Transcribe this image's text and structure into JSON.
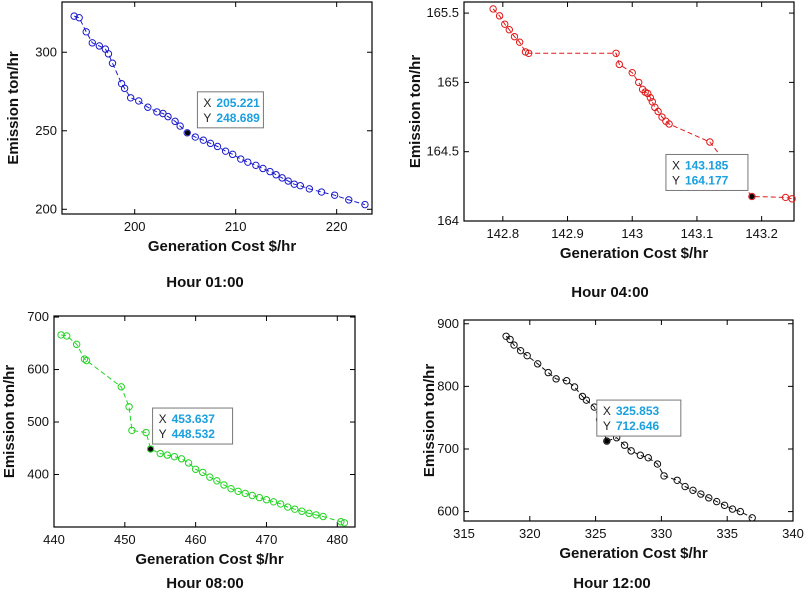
{
  "chart_data": [
    {
      "type": "scatter",
      "caption": "Hour 01:00",
      "xlabel": "Generation Cost $/hr",
      "ylabel": "Emission ton/hr",
      "xlim": [
        192.8,
        223.5
      ],
      "ylim": [
        197,
        332
      ],
      "xticks": [
        200,
        210,
        220
      ],
      "yticks": [
        200,
        250,
        300
      ],
      "xtick_labels": [
        "200",
        "210",
        "220"
      ],
      "ytick_labels": [
        "200",
        "250",
        "300"
      ],
      "color": "#1c1ccc",
      "points": [
        [
          194.0,
          323.0
        ],
        [
          194.5,
          322.0
        ],
        [
          195.2,
          313.0
        ],
        [
          195.8,
          306.0
        ],
        [
          196.5,
          304.0
        ],
        [
          197.1,
          302.0
        ],
        [
          197.4,
          299.0
        ],
        [
          197.8,
          293.0
        ],
        [
          198.7,
          280.0
        ],
        [
          199.0,
          277.0
        ],
        [
          199.6,
          271.0
        ],
        [
          200.4,
          269.0
        ],
        [
          201.3,
          265.0
        ],
        [
          202.2,
          262.0
        ],
        [
          202.8,
          261.0
        ],
        [
          203.3,
          259.0
        ],
        [
          204.0,
          256.0
        ],
        [
          204.5,
          253.0
        ],
        [
          205.2,
          248.7
        ],
        [
          206.0,
          246.0
        ],
        [
          206.8,
          244.0
        ],
        [
          207.5,
          242.0
        ],
        [
          208.2,
          240.0
        ],
        [
          209.0,
          237.0
        ],
        [
          209.7,
          235.0
        ],
        [
          210.5,
          232.0
        ],
        [
          211.2,
          230.0
        ],
        [
          212.0,
          228.0
        ],
        [
          212.7,
          226.0
        ],
        [
          213.4,
          224.0
        ],
        [
          214.0,
          222.0
        ],
        [
          214.6,
          220.0
        ],
        [
          215.2,
          218.0
        ],
        [
          215.8,
          216.0
        ],
        [
          216.4,
          215.0
        ],
        [
          217.3,
          213.0
        ],
        [
          218.5,
          211.0
        ],
        [
          219.8,
          209.0
        ],
        [
          221.2,
          206.0
        ],
        [
          222.8,
          203.0
        ]
      ],
      "cursor": {
        "x": "205.221",
        "y": "248.689",
        "x_val": 205.221,
        "y_val": 248.689
      }
    },
    {
      "type": "scatter",
      "caption": "Hour 04:00",
      "xlabel": "Generation Cost $/hr",
      "ylabel": "Emission ton/hr",
      "xlim": [
        142.74,
        143.25
      ],
      "ylim": [
        164.0,
        165.58
      ],
      "xticks": [
        142.8,
        142.9,
        143.0,
        143.1,
        143.2
      ],
      "yticks": [
        164.0,
        164.5,
        165.0,
        165.5
      ],
      "xtick_labels": [
        "142.8",
        "142.9",
        "143",
        "143.1",
        "143.2"
      ],
      "ytick_labels": [
        "164",
        "164.5",
        "165",
        "165.5"
      ],
      "color": "#e01818",
      "points": [
        [
          142.785,
          165.53
        ],
        [
          142.795,
          165.48
        ],
        [
          142.803,
          165.42
        ],
        [
          142.81,
          165.38
        ],
        [
          142.818,
          165.33
        ],
        [
          142.826,
          165.29
        ],
        [
          142.835,
          165.22
        ],
        [
          142.84,
          165.21
        ],
        [
          142.975,
          165.21
        ],
        [
          142.98,
          165.13
        ],
        [
          143.0,
          165.07
        ],
        [
          143.01,
          165.0
        ],
        [
          143.016,
          164.95
        ],
        [
          143.02,
          164.93
        ],
        [
          143.024,
          164.92
        ],
        [
          143.028,
          164.89
        ],
        [
          143.031,
          164.86
        ],
        [
          143.035,
          164.82
        ],
        [
          143.04,
          164.79
        ],
        [
          143.046,
          164.75
        ],
        [
          143.052,
          164.72
        ],
        [
          143.057,
          164.7
        ],
        [
          143.12,
          164.57
        ],
        [
          143.185,
          164.177
        ],
        [
          143.237,
          164.17
        ],
        [
          143.247,
          164.16
        ]
      ],
      "cursor": {
        "x": "143.185",
        "y": "164.177",
        "x_val": 143.185,
        "y_val": 164.177
      }
    },
    {
      "type": "scatter",
      "caption": "Hour 08:00",
      "xlabel": "Generation Cost $/hr",
      "ylabel": "Emission ton/hr",
      "xlim": [
        440,
        482.5
      ],
      "ylim": [
        300,
        702
      ],
      "xticks": [
        440,
        450,
        460,
        470,
        480
      ],
      "yticks": [
        400,
        500,
        600,
        700
      ],
      "xtick_labels": [
        "440",
        "450",
        "460",
        "470",
        "480"
      ],
      "ytick_labels": [
        "400",
        "500",
        "600",
        "700"
      ],
      "color": "#22d422",
      "points": [
        [
          441.0,
          666.0
        ],
        [
          441.8,
          664.0
        ],
        [
          443.2,
          648.0
        ],
        [
          444.3,
          620.0
        ],
        [
          444.6,
          617.0
        ],
        [
          449.5,
          567.0
        ],
        [
          450.6,
          529.0
        ],
        [
          451.0,
          484.0
        ],
        [
          453.0,
          480.0
        ],
        [
          453.637,
          448.532
        ],
        [
          455.0,
          440.0
        ],
        [
          456.0,
          437.0
        ],
        [
          457.0,
          434.0
        ],
        [
          458.0,
          430.0
        ],
        [
          459.0,
          422.0
        ],
        [
          460.0,
          410.0
        ],
        [
          461.0,
          404.0
        ],
        [
          462.0,
          395.0
        ],
        [
          463.0,
          388.0
        ],
        [
          464.0,
          380.0
        ],
        [
          465.0,
          373.0
        ],
        [
          466.0,
          368.0
        ],
        [
          467.0,
          364.0
        ],
        [
          468.0,
          360.0
        ],
        [
          469.0,
          356.0
        ],
        [
          470.0,
          352.0
        ],
        [
          471.0,
          348.0
        ],
        [
          472.0,
          344.0
        ],
        [
          473.0,
          338.0
        ],
        [
          474.0,
          334.0
        ],
        [
          475.0,
          330.0
        ],
        [
          476.0,
          326.0
        ],
        [
          477.0,
          323.0
        ],
        [
          478.0,
          320.0
        ],
        [
          480.5,
          310.0
        ],
        [
          481.0,
          308.0
        ]
      ],
      "cursor": {
        "x": "453.637",
        "y": "448.532",
        "x_val": 453.637,
        "y_val": 448.532
      }
    },
    {
      "type": "scatter",
      "caption": "Hour 12:00",
      "xlabel": "Generation Cost $/hr",
      "ylabel": "Emission ton/hr",
      "xlim": [
        315,
        340
      ],
      "ylim": [
        585,
        906
      ],
      "xticks": [
        315,
        320,
        325,
        330,
        335,
        340
      ],
      "yticks": [
        600,
        700,
        800,
        900
      ],
      "xtick_labels": [
        "315",
        "320",
        "325",
        "330",
        "335",
        "340"
      ],
      "ytick_labels": [
        "600",
        "700",
        "800",
        "900"
      ],
      "color": "#111111",
      "points": [
        [
          318.2,
          880.0
        ],
        [
          318.5,
          875.0
        ],
        [
          318.8,
          866.0
        ],
        [
          319.3,
          857.0
        ],
        [
          319.8,
          849.0
        ],
        [
          320.6,
          836.0
        ],
        [
          321.4,
          822.0
        ],
        [
          322.0,
          812.0
        ],
        [
          322.8,
          809.0
        ],
        [
          323.4,
          799.0
        ],
        [
          324.0,
          784.0
        ],
        [
          324.3,
          778.0
        ],
        [
          324.9,
          767.0
        ],
        [
          325.3,
          747.0
        ],
        [
          325.853,
          712.646
        ],
        [
          326.6,
          718.0
        ],
        [
          327.2,
          706.0
        ],
        [
          327.7,
          697.0
        ],
        [
          328.4,
          690.0
        ],
        [
          329.0,
          686.0
        ],
        [
          329.7,
          676.0
        ],
        [
          330.2,
          657.0
        ],
        [
          331.2,
          650.0
        ],
        [
          331.8,
          640.0
        ],
        [
          332.4,
          634.0
        ],
        [
          333.0,
          628.0
        ],
        [
          333.6,
          622.0
        ],
        [
          334.2,
          616.0
        ],
        [
          334.8,
          610.0
        ],
        [
          335.4,
          604.0
        ],
        [
          336.0,
          600.0
        ],
        [
          336.9,
          590.0
        ]
      ],
      "cursor": {
        "x": "325.853",
        "y": "712.646",
        "x_val": 325.853,
        "y_val": 712.646
      }
    }
  ]
}
